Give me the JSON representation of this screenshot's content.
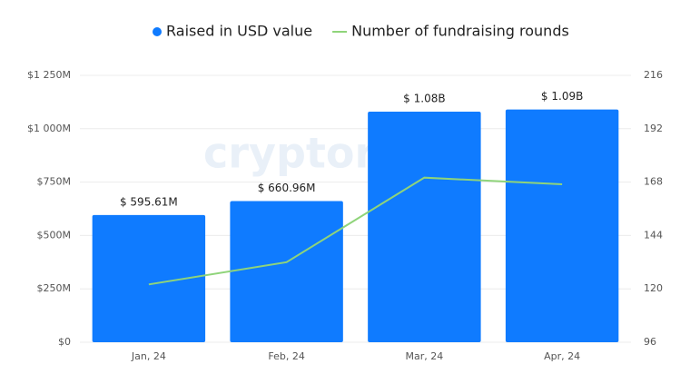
{
  "chart_data": {
    "type": "bar",
    "watermark": "cryptorank",
    "categories": [
      "Jan, 24",
      "Feb, 24",
      "Mar, 24",
      "Apr, 24"
    ],
    "series": [
      {
        "name": "Raised in USD value",
        "type": "bar",
        "color": "#0f7bff",
        "values": [
          595.61,
          660.96,
          1080,
          1090
        ],
        "value_labels": [
          "$ 595.61M",
          "$ 660.96M",
          "$ 1.08B",
          "$ 1.09B"
        ]
      },
      {
        "name": "Number of fundraising rounds",
        "type": "line",
        "axis": "y2",
        "color": "#8fd47a",
        "values": [
          122,
          132,
          170,
          167
        ]
      }
    ],
    "ylim": [
      0,
      1250
    ],
    "yticks": [
      {
        "value": 0,
        "label": "$0"
      },
      {
        "value": 250,
        "label": "$250M"
      },
      {
        "value": 500,
        "label": "$500M"
      },
      {
        "value": 750,
        "label": "$750M"
      },
      {
        "value": 1000,
        "label": "$1 000M"
      },
      {
        "value": 1250,
        "label": "$1 250M"
      }
    ],
    "y2lim": [
      96,
      216
    ],
    "y2ticks": [
      96,
      120,
      144,
      168,
      192,
      216
    ],
    "grid": true
  }
}
